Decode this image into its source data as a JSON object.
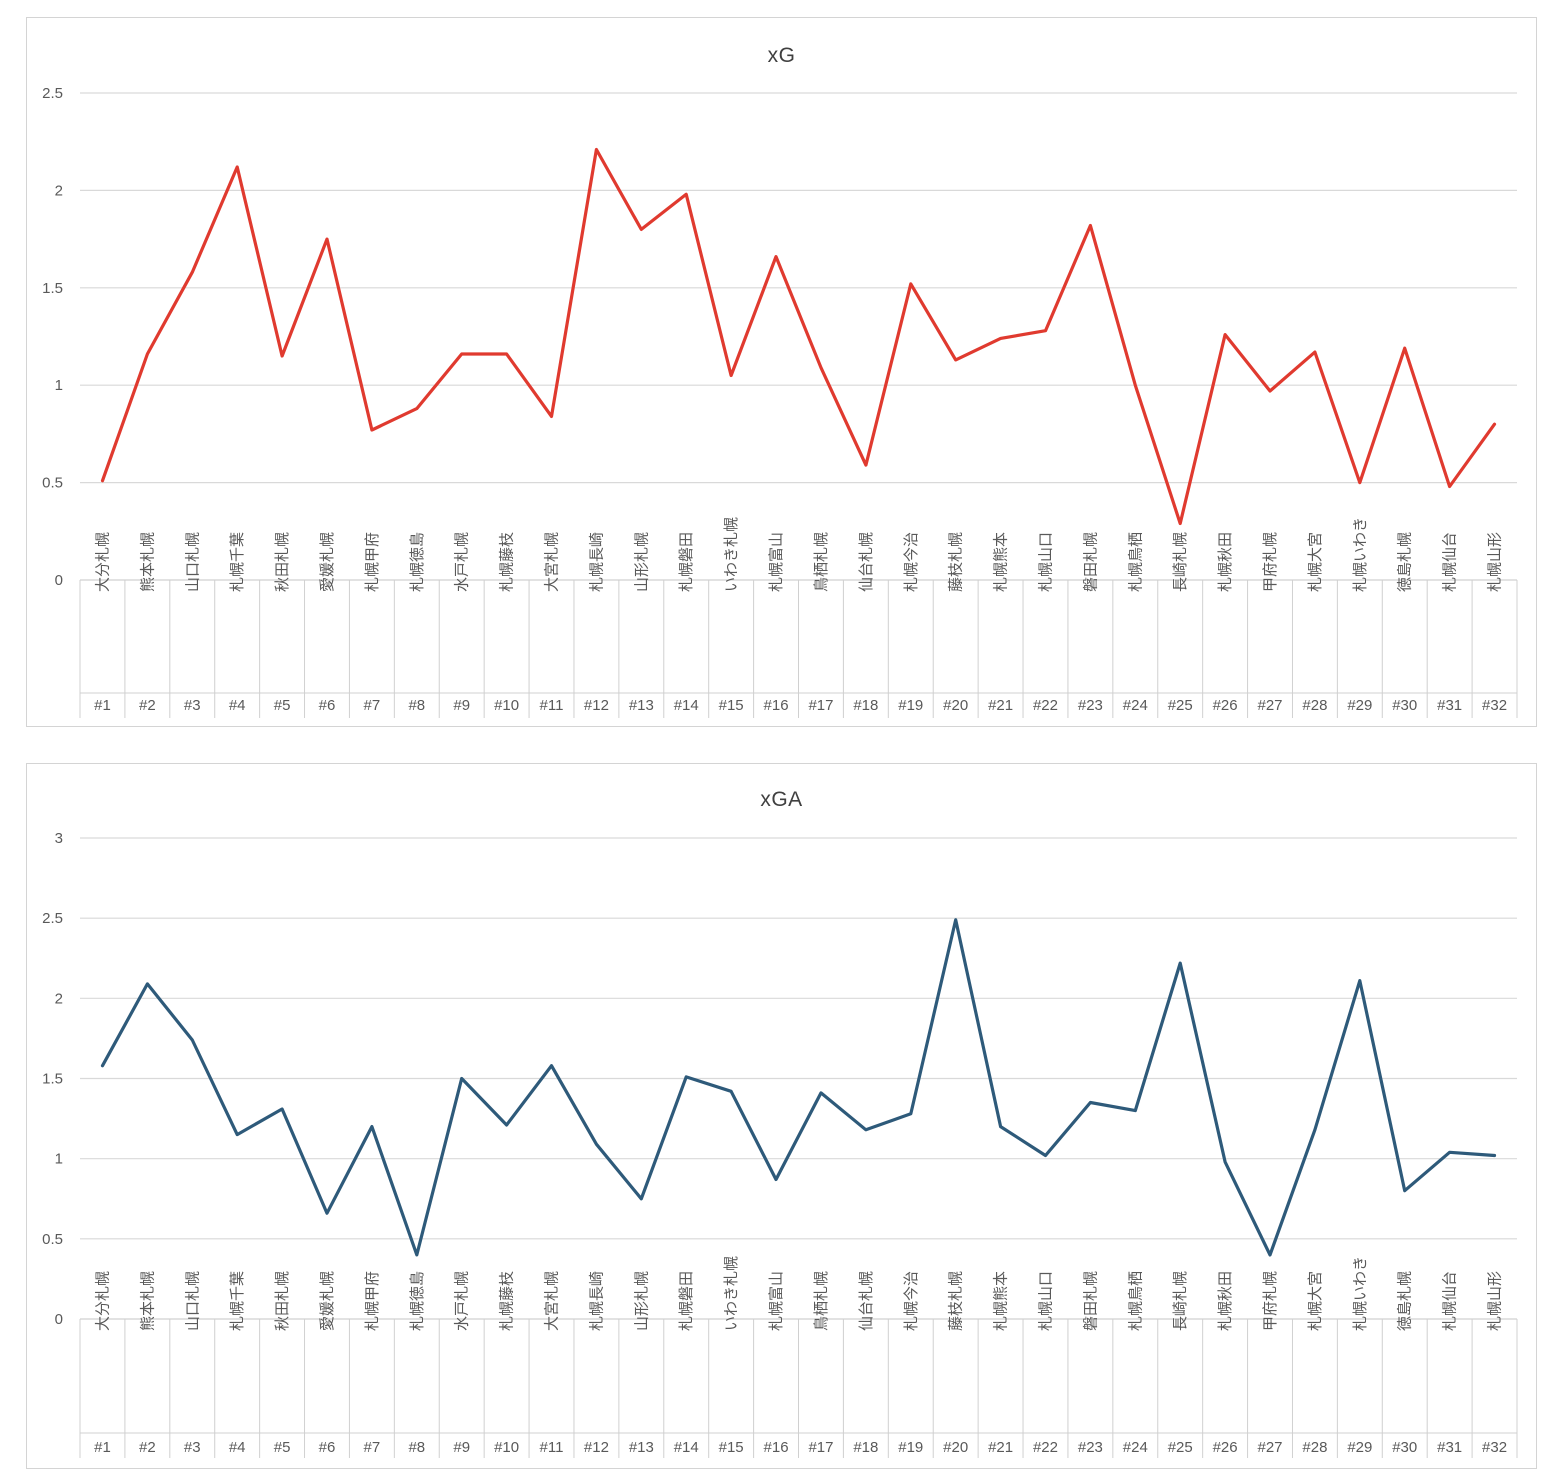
{
  "chart_data": [
    {
      "type": "line",
      "title": "xG",
      "xlabel": "",
      "ylabel": "",
      "ylim": [
        0,
        2.5
      ],
      "yticks": [
        "0",
        "0.5",
        "1",
        "1.5",
        "2",
        "2.5"
      ],
      "categories": [
        "大分札幌",
        "熊本札幌",
        "山口札幌",
        "札幌千葉",
        "秋田札幌",
        "愛媛札幌",
        "札幌甲府",
        "札幌徳島",
        "水戸札幌",
        "札幌藤枝",
        "大宮札幌",
        "札幌長崎",
        "山形札幌",
        "札幌磐田",
        "いわき札幌",
        "札幌富山",
        "鳥栖札幌",
        "仙台札幌",
        "札幌今治",
        "藤枝札幌",
        "札幌熊本",
        "札幌山口",
        "磐田札幌",
        "札幌鳥栖",
        "長崎札幌",
        "札幌秋田",
        "甲府札幌",
        "札幌大宮",
        "札幌いわき",
        "徳島札幌",
        "札幌仙台",
        "札幌山形"
      ],
      "match_numbers": [
        "#1",
        "#2",
        "#3",
        "#4",
        "#5",
        "#6",
        "#7",
        "#8",
        "#9",
        "#10",
        "#11",
        "#12",
        "#13",
        "#14",
        "#15",
        "#16",
        "#17",
        "#18",
        "#19",
        "#20",
        "#21",
        "#22",
        "#23",
        "#24",
        "#25",
        "#26",
        "#27",
        "#28",
        "#29",
        "#30",
        "#31",
        "#32"
      ],
      "values": [
        0.51,
        1.16,
        1.58,
        2.12,
        1.15,
        1.75,
        0.77,
        0.88,
        1.16,
        1.16,
        0.84,
        2.21,
        1.8,
        1.98,
        1.05,
        1.66,
        1.09,
        0.59,
        1.52,
        1.13,
        1.24,
        1.28,
        1.82,
        1.0,
        0.29,
        1.26,
        0.97,
        1.17,
        0.5,
        1.19,
        0.48,
        0.8
      ],
      "color": "#e03a2f",
      "grid": true
    },
    {
      "type": "line",
      "title": "xGA",
      "xlabel": "",
      "ylabel": "",
      "ylim": [
        0,
        3
      ],
      "yticks": [
        "0",
        "0.5",
        "1",
        "1.5",
        "2",
        "2.5",
        "3"
      ],
      "categories": [
        "大分札幌",
        "熊本札幌",
        "山口札幌",
        "札幌千葉",
        "秋田札幌",
        "愛媛札幌",
        "札幌甲府",
        "札幌徳島",
        "水戸札幌",
        "札幌藤枝",
        "大宮札幌",
        "札幌長崎",
        "山形札幌",
        "札幌磐田",
        "いわき札幌",
        "札幌富山",
        "鳥栖札幌",
        "仙台札幌",
        "札幌今治",
        "藤枝札幌",
        "札幌熊本",
        "札幌山口",
        "磐田札幌",
        "札幌鳥栖",
        "長崎札幌",
        "札幌秋田",
        "甲府札幌",
        "札幌大宮",
        "札幌いわき",
        "徳島札幌",
        "札幌仙台",
        "札幌山形"
      ],
      "match_numbers": [
        "#1",
        "#2",
        "#3",
        "#4",
        "#5",
        "#6",
        "#7",
        "#8",
        "#9",
        "#10",
        "#11",
        "#12",
        "#13",
        "#14",
        "#15",
        "#16",
        "#17",
        "#18",
        "#19",
        "#20",
        "#21",
        "#22",
        "#23",
        "#24",
        "#25",
        "#26",
        "#27",
        "#28",
        "#29",
        "#30",
        "#31",
        "#32"
      ],
      "values": [
        1.58,
        2.09,
        1.74,
        1.15,
        1.31,
        0.66,
        1.2,
        0.4,
        1.5,
        1.21,
        1.58,
        1.09,
        0.75,
        1.51,
        1.42,
        0.87,
        1.41,
        1.18,
        1.28,
        2.49,
        1.2,
        1.02,
        1.35,
        1.3,
        2.22,
        0.98,
        0.4,
        1.18,
        2.11,
        0.8,
        1.04,
        1.02
      ],
      "color": "#2e5a7a",
      "grid": true
    }
  ]
}
